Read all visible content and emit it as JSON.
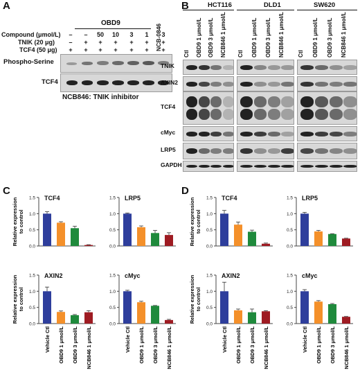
{
  "panels": {
    "A": "A",
    "B": "B",
    "C": "C",
    "D": "D"
  },
  "panelA": {
    "treatment_label": "OBD9",
    "ncb_label": "NCB-0846",
    "rows": [
      {
        "label": "Compound (μmol/L)",
        "values": [
          "–",
          "–",
          "50",
          "10",
          "3",
          "1",
          "3"
        ]
      },
      {
        "label": "TNIK (20 μg)",
        "values": [
          "–",
          "+",
          "+",
          "+",
          "+",
          "+",
          "+"
        ]
      },
      {
        "label": "TCF4 (50 μg)",
        "values": [
          "+",
          "+",
          "+",
          "+",
          "+",
          "+",
          "+"
        ]
      }
    ],
    "blots": [
      "Phospho-Serine",
      "TCF4"
    ],
    "caption": "NCB846: TNIK inhibitor"
  },
  "panelB": {
    "cell_lines": [
      "HCT116",
      "DLD1",
      "SW620"
    ],
    "lanes": [
      "Ctl",
      "OBD9 1 μmol/L",
      "OBD9 3 μmol/L",
      "NCB846 1 μmol/L"
    ],
    "blots": [
      "TNIK",
      "AXIN2",
      "TCF4",
      "cMyc",
      "LRP5",
      "GAPDH"
    ]
  },
  "colors": {
    "ctl": "#2e3e9c",
    "obd9_1": "#f4902a",
    "obd9_3": "#1f8a3c",
    "ncb": "#9e1b22"
  },
  "bar_lanes": [
    "Vehicle Ctl",
    "OBD9 1 μmol/L",
    "OBD9 3 μmol/L",
    "NCB846 1 μmol/L"
  ],
  "ylabel_line1": "Relative expression",
  "ylabel_line2": "to control",
  "chart_data": [
    {
      "panel": "C",
      "title": "TCF4",
      "type": "bar",
      "ylim": [
        0,
        1.5
      ],
      "values": [
        1.0,
        0.72,
        0.55,
        0.03
      ],
      "errors": [
        0.06,
        0.03,
        0.06,
        0.01
      ]
    },
    {
      "panel": "C",
      "title": "LRP5",
      "type": "bar",
      "ylim": [
        0,
        1.5
      ],
      "values": [
        1.0,
        0.58,
        0.4,
        0.34
      ],
      "errors": [
        0.02,
        0.04,
        0.08,
        0.07
      ]
    },
    {
      "panel": "C",
      "title": "AXIN2",
      "type": "bar",
      "ylim": [
        0,
        1.5
      ],
      "values": [
        1.0,
        0.36,
        0.26,
        0.35
      ],
      "errors": [
        0.13,
        0.03,
        0.02,
        0.05
      ]
    },
    {
      "panel": "C",
      "title": "cMyc",
      "type": "bar",
      "ylim": [
        0,
        1.5
      ],
      "values": [
        1.0,
        0.66,
        0.55,
        0.11
      ],
      "errors": [
        0.03,
        0.03,
        0.01,
        0.02
      ]
    },
    {
      "panel": "D",
      "title": "TCF4",
      "type": "bar",
      "ylim": [
        0,
        1.5
      ],
      "values": [
        1.0,
        0.66,
        0.44,
        0.07
      ],
      "errors": [
        0.1,
        0.08,
        0.05,
        0.02
      ]
    },
    {
      "panel": "D",
      "title": "LRP5",
      "type": "bar",
      "ylim": [
        0,
        1.5
      ],
      "values": [
        1.0,
        0.45,
        0.37,
        0.23
      ],
      "errors": [
        0.04,
        0.03,
        0.01,
        0.01
      ]
    },
    {
      "panel": "D",
      "title": "AXIN2",
      "type": "bar",
      "ylim": [
        0,
        1.5
      ],
      "values": [
        1.0,
        0.41,
        0.35,
        0.38
      ],
      "errors": [
        0.28,
        0.04,
        0.1,
        0.02
      ]
    },
    {
      "panel": "D",
      "title": "cMyc",
      "type": "bar",
      "ylim": [
        0,
        1.5
      ],
      "values": [
        1.0,
        0.68,
        0.6,
        0.21
      ],
      "errors": [
        0.05,
        0.03,
        0.02,
        0.01
      ]
    }
  ]
}
